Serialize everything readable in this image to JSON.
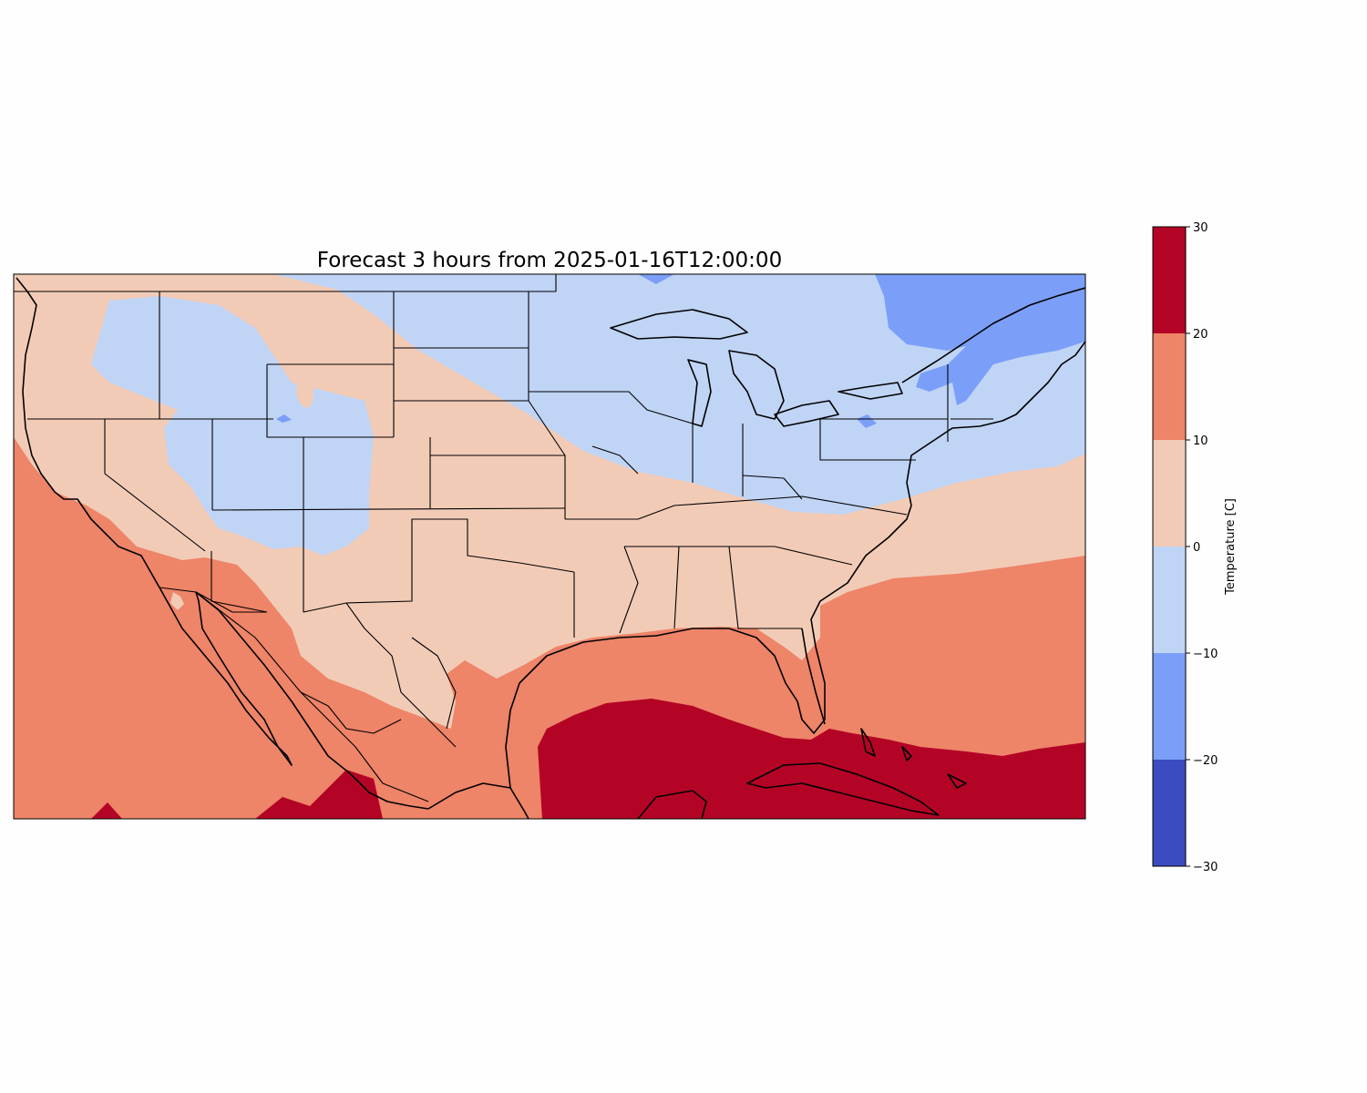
{
  "map": {
    "title": "Forecast 3 hours from 2025-01-16T12:00:00",
    "variable": "Temperature",
    "units": "C"
  },
  "colorbar": {
    "label": "Temperature [C]",
    "min": -30,
    "max": 30,
    "levels": [
      {
        "from": -30,
        "to": -20,
        "color": "#3b4cc0"
      },
      {
        "from": -20,
        "to": -10,
        "color": "#7b9ff9"
      },
      {
        "from": -10,
        "to": 0,
        "color": "#c0d4f5"
      },
      {
        "from": 0,
        "to": 10,
        "color": "#f2cbb7"
      },
      {
        "from": 10,
        "to": 20,
        "color": "#ee8468"
      },
      {
        "from": 20,
        "to": 30,
        "color": "#b40426"
      }
    ],
    "ticks": [
      {
        "value": 30,
        "label": "30"
      },
      {
        "value": 20,
        "label": "20"
      },
      {
        "value": 10,
        "label": "10"
      },
      {
        "value": 0,
        "label": "0"
      },
      {
        "value": -10,
        "label": "−10"
      },
      {
        "value": -20,
        "label": "−20"
      },
      {
        "value": -30,
        "label": "−30"
      }
    ]
  }
}
